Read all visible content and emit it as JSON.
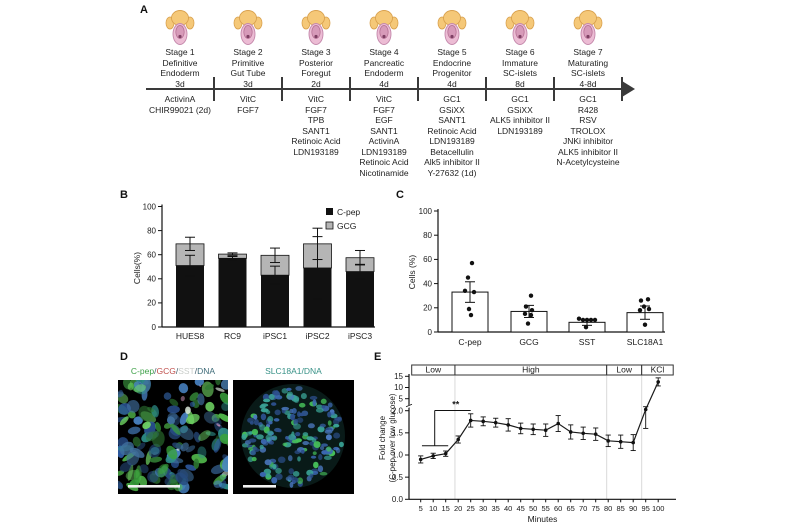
{
  "panelA": {
    "label": "A",
    "stages": [
      {
        "title": "Stage 1",
        "name1": "Definitive",
        "name2": "Endoderm",
        "duration": "3d",
        "reagents": [
          "ActivinA",
          "CHIR99021 (2d)"
        ]
      },
      {
        "title": "Stage 2",
        "name1": "Primitive",
        "name2": "Gut Tube",
        "duration": "3d",
        "reagents": [
          "VitC",
          "FGF7"
        ]
      },
      {
        "title": "Stage 3",
        "name1": "Posterior",
        "name2": "Foregut",
        "duration": "2d",
        "reagents": [
          "VitC",
          "FGF7",
          "TPB",
          "SANT1",
          "Retinoic Acid",
          "LDN193189"
        ]
      },
      {
        "title": "Stage 4",
        "name1": "Pancreatic",
        "name2": "Endoderm",
        "duration": "4d",
        "reagents": [
          "VitC",
          "FGF7",
          "EGF",
          "SANT1",
          "ActivinA",
          "LDN193189",
          "Retinoic Acid",
          "Nicotinamide"
        ]
      },
      {
        "title": "Stage 5",
        "name1": "Endocrine",
        "name2": "Progenitor",
        "duration": "4d",
        "reagents": [
          "GC1",
          "GSiXX",
          "SANT1",
          "Retinoic Acid",
          "LDN193189",
          "Betacellulin",
          "Alk5 inhibitor II",
          "Y-27632 (1d)"
        ]
      },
      {
        "title": "Stage 6",
        "name1": "Immature",
        "name2": "SC-islets",
        "duration": "8d",
        "reagents": [
          "GC1",
          "GSiXX",
          "ALK5 inhibitor II",
          "LDN193189"
        ]
      },
      {
        "title": "Stage 7",
        "name1": "Maturating",
        "name2": "SC-islets",
        "duration": "4-8d",
        "reagents": [
          "GC1",
          "R428",
          "RSV",
          "TROLOX",
          "JNKi inhibitor",
          "ALK5 inhibitor II",
          "N-Acetylcysteine"
        ]
      }
    ],
    "icon_colors": {
      "head": "#f5c878",
      "head_stroke": "#d9a14e",
      "body": "#ecbcd4",
      "body_stroke": "#c488ab",
      "inner": "#d79ab9",
      "tube": "#b06a8e",
      "dot": "#7e3f63"
    }
  },
  "panelB": {
    "label": "B"
  },
  "panelC": {
    "label": "C"
  },
  "panelD": {
    "label": "D",
    "left_caption_parts": [
      {
        "text": "C-pep",
        "color": "#3da047"
      },
      {
        "text": "/",
        "color": "#44606c"
      },
      {
        "text": "GCG",
        "color": "#c0504d"
      },
      {
        "text": "/",
        "color": "#44606c"
      },
      {
        "text": "SST",
        "color": "#c9cdc9"
      },
      {
        "text": "/",
        "color": "#44606c"
      },
      {
        "text": "DNA",
        "color": "#3e6b78"
      }
    ],
    "right_caption_parts": [
      {
        "text": "SLC18A1/DNA",
        "color": "#379187"
      }
    ],
    "micro_colors": {
      "background": "#000000",
      "left_greens": [
        "#39a13c",
        "#55c24f",
        "#2f7a33",
        "#6fd463"
      ],
      "left_blues": [
        "#2f5ca6",
        "#41719f",
        "#274b7e",
        "#4a86c8"
      ],
      "left_teal": "#2e8f8a",
      "left_white": "#dce8dc",
      "left_pink": "#c78fb4",
      "right_blues": [
        "#3b67b0",
        "#2c4f8c",
        "#4b79c0"
      ],
      "right_teal": "#3aa396",
      "right_green": "#46c05a",
      "scalebar": "#f2f2f2"
    }
  },
  "panelE": {
    "label": "E"
  },
  "chart_data": [
    {
      "id": "B",
      "type": "bar",
      "subtype": "stacked",
      "ylabel": "Cells(%)",
      "ylim": [
        0,
        100
      ],
      "yticks": [
        0,
        20,
        40,
        60,
        80,
        100
      ],
      "categories": [
        "HUES8",
        "RC9",
        "iPSC1",
        "iPSC2",
        "iPSC3"
      ],
      "series": [
        {
          "name": "C-pep",
          "color": "#111111",
          "values": [
            51,
            57,
            43,
            49,
            46
          ],
          "errors": [
            8.5,
            1.5,
            7.5,
            26,
            6
          ]
        },
        {
          "name": "GCG",
          "color": "#b5b5b5",
          "values": [
            18,
            3.5,
            16.5,
            20,
            11.5
          ],
          "errors": [
            5.5,
            1,
            6,
            13,
            6
          ]
        }
      ],
      "legend_position": "top-right",
      "grid": false
    },
    {
      "id": "C",
      "type": "bar",
      "subtype": "scatter-overlay",
      "ylabel": "Cells (%)",
      "ylim": [
        0,
        100
      ],
      "yticks": [
        0,
        20,
        40,
        60,
        80,
        100
      ],
      "categories": [
        "C-pep",
        "GCG",
        "SST",
        "SLC18A1"
      ],
      "values": [
        33,
        17,
        8,
        16
      ],
      "errors": [
        8.5,
        5,
        2.5,
        5.5
      ],
      "points": [
        [
          57,
          45,
          34,
          33,
          19,
          14
        ],
        [
          30,
          21,
          18,
          15,
          14,
          7
        ],
        [
          11,
          10,
          10,
          10,
          10,
          4
        ],
        [
          27,
          26,
          21,
          19,
          18,
          6
        ]
      ],
      "point_x_offsets": [
        [
          2,
          -2,
          -5,
          4,
          -1,
          1
        ],
        [
          2,
          -3,
          3,
          -4,
          2,
          -1
        ],
        [
          -8,
          -4,
          0,
          4,
          8,
          -1
        ],
        [
          3,
          -4,
          -1,
          4,
          -5,
          0
        ]
      ],
      "bar_fill": "#ffffff",
      "bar_stroke": "#111111",
      "grid": false
    },
    {
      "id": "E",
      "type": "line",
      "xlabel": "Minutes",
      "ylabel_line1": "Fold change",
      "ylabel_line2": "(C-pep  over low glucose)",
      "x": [
        5,
        10,
        15,
        20,
        25,
        30,
        35,
        40,
        45,
        50,
        55,
        60,
        65,
        70,
        75,
        80,
        85,
        90,
        95,
        100
      ],
      "y": [
        0.9,
        0.98,
        1.03,
        1.35,
        1.78,
        1.76,
        1.73,
        1.68,
        1.6,
        1.58,
        1.56,
        1.71,
        1.52,
        1.49,
        1.47,
        1.32,
        1.3,
        1.28,
        2.3,
        12.5
      ],
      "yerr": [
        0.08,
        0.06,
        0.06,
        0.08,
        0.15,
        0.1,
        0.1,
        0.14,
        0.12,
        0.12,
        0.14,
        0.18,
        0.16,
        0.14,
        0.14,
        0.13,
        0.15,
        0.18,
        0.7,
        1.8
      ],
      "yticks_lower": [
        0.0,
        0.5,
        1.0,
        1.5,
        2.0
      ],
      "yticks_upper": [
        5,
        10,
        15
      ],
      "axis_break_after": 2.0,
      "bands": [
        {
          "label": "Low"
        },
        {
          "label": "High"
        },
        {
          "label": "Low"
        },
        {
          "label": "KCl"
        }
      ],
      "band_minutes": [
        1.4,
        18.7,
        79.4,
        93.4,
        106
      ],
      "guide_minutes": [
        18.7,
        79.4,
        93.4
      ],
      "significance": {
        "label": "**",
        "baseline_y": 1.21,
        "baseline_x1": 5.5,
        "baseline_x2": 16,
        "riser_x": 10.6,
        "top_y": 2.05,
        "top_x1": 10.6,
        "top_x2": 25
      },
      "line_color": "#1a1a1a",
      "guide_color": "#d9d9d9",
      "grid": false
    }
  ]
}
